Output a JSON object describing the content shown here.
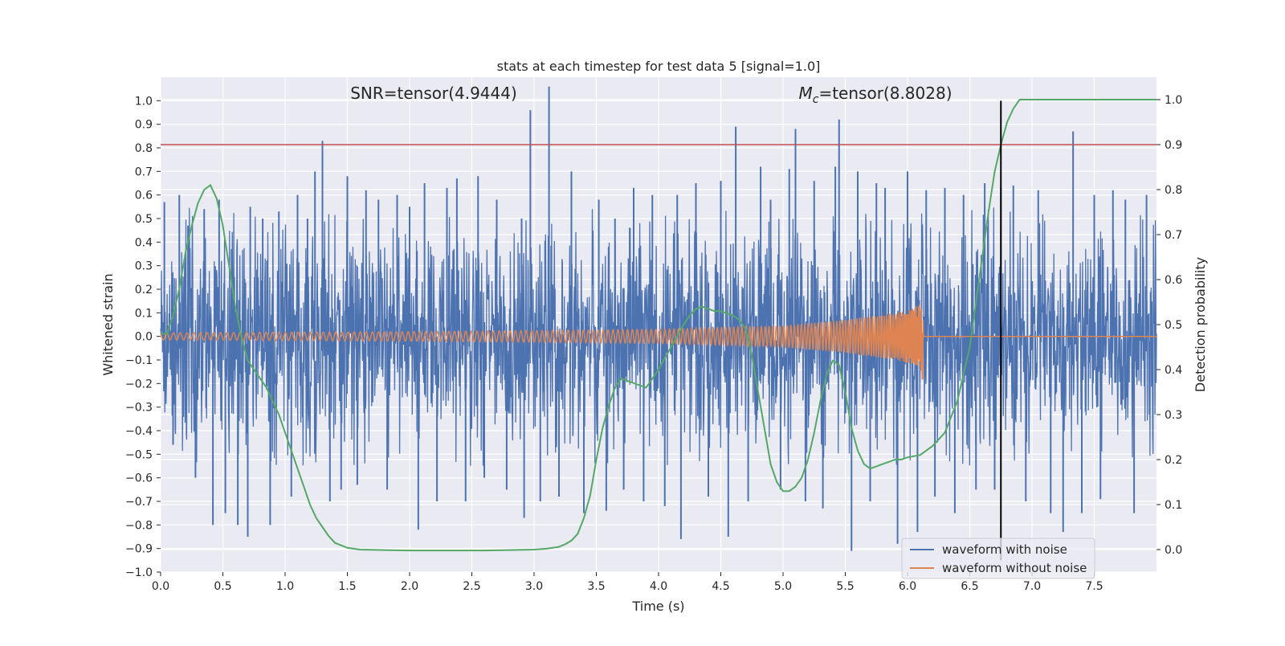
{
  "chart_data": {
    "type": "line",
    "title": "stats at each timestep for test data 5 [signal=1.0]",
    "xlabel": "Time (s)",
    "ylabel": "Whitened strain",
    "ylabel_right": "Detection probability",
    "xlim": [
      0.0,
      8.0
    ],
    "ylim": [
      -1.0,
      1.1
    ],
    "ylim_right": [
      -0.05,
      1.05
    ],
    "x_ticks": [
      "0.0",
      "0.5",
      "1.0",
      "1.5",
      "2.0",
      "2.5",
      "3.0",
      "3.5",
      "4.0",
      "4.5",
      "5.0",
      "5.5",
      "6.0",
      "6.5",
      "7.0",
      "7.5"
    ],
    "y_ticks": [
      "1.0",
      "0.9",
      "0.8",
      "0.7",
      "0.6",
      "0.5",
      "0.4",
      "0.3",
      "0.2",
      "0.1",
      "0.0",
      "−0.1",
      "−0.2",
      "−0.3",
      "−0.4",
      "−0.5",
      "−0.6",
      "−0.7",
      "−0.8",
      "−0.9",
      "−1.0"
    ],
    "y_ticks_right": [
      "1.0",
      "0.9",
      "0.8",
      "0.7",
      "0.6",
      "0.5",
      "0.4",
      "0.3",
      "0.2",
      "0.1",
      "0.0"
    ],
    "grid": true,
    "legend_position": "lower-right",
    "annotations": {
      "snr_label": "SNR=tensor(4.9444)",
      "mc_label_symbol": "M",
      "mc_label_subscript": "c",
      "mc_label_rest": "=tensor(8.8028)"
    },
    "threshold": {
      "value": 0.9,
      "axis": "right",
      "color": "#c44e52"
    },
    "vertical_marker": {
      "x": 6.75,
      "ymin": -0.95,
      "ymax": 1.0,
      "color": "#000000"
    },
    "series": [
      {
        "name": "waveform with noise",
        "color": "#4c72b0",
        "axis": "left",
        "note_style": "dense",
        "peaks": [
          [
            0.03,
            0.57
          ],
          [
            0.1,
            -0.46
          ],
          [
            0.15,
            0.6
          ],
          [
            0.22,
            0.47
          ],
          [
            0.28,
            -0.6
          ],
          [
            0.35,
            0.54
          ],
          [
            0.42,
            -0.8
          ],
          [
            0.47,
            0.58
          ],
          [
            0.52,
            -0.75
          ],
          [
            0.57,
            0.37
          ],
          [
            0.62,
            -0.8
          ],
          [
            0.7,
            -0.85
          ],
          [
            0.72,
            0.55
          ],
          [
            0.82,
            0.5
          ],
          [
            0.88,
            -0.8
          ],
          [
            0.95,
            0.53
          ],
          [
            1.05,
            -0.68
          ],
          [
            1.1,
            0.6
          ],
          [
            1.18,
            0.5
          ],
          [
            1.24,
            0.7
          ],
          [
            1.3,
            0.83
          ],
          [
            1.36,
            -0.7
          ],
          [
            1.45,
            -0.65
          ],
          [
            1.5,
            0.68
          ],
          [
            1.58,
            -0.63
          ],
          [
            1.65,
            0.62
          ],
          [
            1.75,
            0.58
          ],
          [
            1.82,
            -0.65
          ],
          [
            1.9,
            0.6
          ],
          [
            2.0,
            0.55
          ],
          [
            2.07,
            -0.82
          ],
          [
            2.12,
            0.65
          ],
          [
            2.22,
            -0.7
          ],
          [
            2.3,
            0.63
          ],
          [
            2.38,
            0.67
          ],
          [
            2.45,
            -0.7
          ],
          [
            2.55,
            0.68
          ],
          [
            2.6,
            -0.6
          ],
          [
            2.7,
            0.58
          ],
          [
            2.78,
            -0.65
          ],
          [
            2.9,
            0.5
          ],
          [
            2.92,
            -0.77
          ],
          [
            2.97,
            0.96
          ],
          [
            3.05,
            -0.7
          ],
          [
            3.12,
            1.06
          ],
          [
            3.2,
            -0.68
          ],
          [
            3.3,
            0.7
          ],
          [
            3.4,
            -0.75
          ],
          [
            3.52,
            0.58
          ],
          [
            3.58,
            -0.74
          ],
          [
            3.65,
            0.5
          ],
          [
            3.72,
            -0.65
          ],
          [
            3.8,
            0.63
          ],
          [
            3.88,
            -0.7
          ],
          [
            3.95,
            0.6
          ],
          [
            4.05,
            -0.72
          ],
          [
            4.15,
            0.6
          ],
          [
            4.18,
            -0.86
          ],
          [
            4.3,
            0.65
          ],
          [
            4.4,
            -0.68
          ],
          [
            4.5,
            0.66
          ],
          [
            4.56,
            -0.85
          ],
          [
            4.62,
            0.89
          ],
          [
            4.72,
            -0.7
          ],
          [
            4.82,
            0.72
          ],
          [
            4.9,
            0.58
          ],
          [
            4.98,
            -0.65
          ],
          [
            5.05,
            0.71
          ],
          [
            5.1,
            0.88
          ],
          [
            5.18,
            -0.7
          ],
          [
            5.25,
            0.66
          ],
          [
            5.32,
            -0.73
          ],
          [
            5.42,
            0.72
          ],
          [
            5.45,
            0.92
          ],
          [
            5.55,
            -0.91
          ],
          [
            5.6,
            0.7
          ],
          [
            5.7,
            -0.7
          ],
          [
            5.75,
            0.65
          ],
          [
            5.82,
            0.63
          ],
          [
            5.92,
            -0.88
          ],
          [
            6.0,
            0.7
          ],
          [
            6.08,
            -0.83
          ],
          [
            6.15,
            0.62
          ],
          [
            6.22,
            -0.68
          ],
          [
            6.3,
            0.63
          ],
          [
            6.38,
            -0.75
          ],
          [
            6.45,
            0.6
          ],
          [
            6.55,
            -0.65
          ],
          [
            6.62,
            0.65
          ],
          [
            6.7,
            -0.65
          ],
          [
            6.75,
            0.63
          ],
          [
            6.85,
            0.64
          ],
          [
            6.95,
            -0.7
          ],
          [
            7.05,
            0.62
          ],
          [
            7.15,
            -0.75
          ],
          [
            7.25,
            -0.83
          ],
          [
            7.33,
            0.87
          ],
          [
            7.4,
            -0.75
          ],
          [
            7.5,
            0.6
          ],
          [
            7.55,
            -0.69
          ],
          [
            7.65,
            0.62
          ],
          [
            7.75,
            0.58
          ],
          [
            7.82,
            -0.75
          ],
          [
            7.92,
            0.6
          ]
        ]
      },
      {
        "name": "waveform without noise",
        "color": "#dd8452",
        "axis": "left",
        "amplitude": [
          [
            0.0,
            0.015
          ],
          [
            2.0,
            0.02
          ],
          [
            4.0,
            0.03
          ],
          [
            5.0,
            0.045
          ],
          [
            5.5,
            0.07
          ],
          [
            5.9,
            0.1
          ],
          [
            6.05,
            0.12
          ],
          [
            6.12,
            0.15
          ],
          [
            6.13,
            0.0
          ],
          [
            8.0,
            0.0
          ]
        ],
        "trough_at_merger": -0.18
      },
      {
        "name": "",
        "color": "#55a868",
        "axis": "right",
        "x": [
          0.0,
          0.05,
          0.1,
          0.15,
          0.2,
          0.25,
          0.3,
          0.35,
          0.4,
          0.45,
          0.5,
          0.55,
          0.6,
          0.65,
          0.7,
          0.75,
          0.8,
          0.85,
          0.9,
          0.95,
          1.0,
          1.05,
          1.1,
          1.15,
          1.2,
          1.25,
          1.3,
          1.35,
          1.4,
          1.5,
          1.6,
          1.8,
          2.0,
          2.2,
          2.4,
          2.6,
          2.8,
          3.0,
          3.1,
          3.2,
          3.25,
          3.3,
          3.35,
          3.4,
          3.45,
          3.5,
          3.55,
          3.6,
          3.65,
          3.7,
          3.8,
          3.9,
          4.0,
          4.1,
          4.2,
          4.25,
          4.3,
          4.35,
          4.4,
          4.45,
          4.5,
          4.55,
          4.6,
          4.65,
          4.7,
          4.75,
          4.8,
          4.85,
          4.9,
          4.95,
          5.0,
          5.05,
          5.1,
          5.15,
          5.2,
          5.25,
          5.3,
          5.35,
          5.4,
          5.45,
          5.5,
          5.55,
          5.6,
          5.65,
          5.7,
          5.75,
          5.8,
          5.85,
          5.9,
          5.95,
          6.0,
          6.1,
          6.2,
          6.3,
          6.4,
          6.5,
          6.55,
          6.6,
          6.65,
          6.7,
          6.75,
          6.8,
          6.85,
          6.9,
          6.95,
          7.0,
          7.2,
          7.5,
          8.0
        ],
        "y": [
          0.48,
          0.48,
          0.52,
          0.58,
          0.66,
          0.72,
          0.77,
          0.8,
          0.81,
          0.78,
          0.72,
          0.63,
          0.54,
          0.47,
          0.42,
          0.4,
          0.38,
          0.36,
          0.33,
          0.3,
          0.26,
          0.22,
          0.18,
          0.14,
          0.1,
          0.07,
          0.05,
          0.03,
          0.015,
          0.004,
          0.0,
          -0.001,
          -0.002,
          -0.002,
          -0.002,
          -0.002,
          -0.001,
          0.0,
          0.002,
          0.006,
          0.012,
          0.02,
          0.035,
          0.07,
          0.12,
          0.2,
          0.27,
          0.32,
          0.36,
          0.38,
          0.37,
          0.36,
          0.4,
          0.45,
          0.5,
          0.52,
          0.535,
          0.54,
          0.535,
          0.53,
          0.53,
          0.525,
          0.52,
          0.51,
          0.49,
          0.43,
          0.35,
          0.27,
          0.19,
          0.15,
          0.13,
          0.13,
          0.14,
          0.16,
          0.2,
          0.26,
          0.33,
          0.39,
          0.42,
          0.41,
          0.35,
          0.27,
          0.22,
          0.19,
          0.18,
          0.185,
          0.19,
          0.195,
          0.2,
          0.2,
          0.205,
          0.21,
          0.23,
          0.26,
          0.33,
          0.45,
          0.55,
          0.65,
          0.75,
          0.84,
          0.9,
          0.95,
          0.98,
          1.0,
          1.0,
          1.0,
          1.0,
          1.0,
          1.0
        ]
      }
    ]
  }
}
